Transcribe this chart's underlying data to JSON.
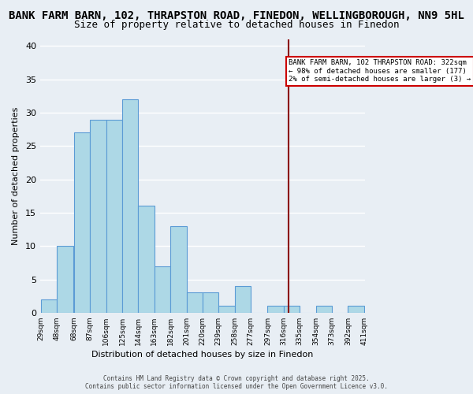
{
  "title1": "BANK FARM BARN, 102, THRAPSTON ROAD, FINEDON, WELLINGBOROUGH, NN9 5HL",
  "title2": "Size of property relative to detached houses in Finedon",
  "xlabel": "Distribution of detached houses by size in Finedon",
  "ylabel": "Number of detached properties",
  "bar_left_edges": [
    29,
    48,
    68,
    87,
    106,
    125,
    144,
    163,
    182,
    201,
    220,
    239,
    258,
    277,
    297,
    316,
    335,
    354,
    373,
    392
  ],
  "bar_heights": [
    2,
    10,
    27,
    29,
    29,
    32,
    16,
    7,
    13,
    3,
    3,
    1,
    4,
    0,
    1,
    1,
    0,
    1,
    0,
    1
  ],
  "bin_width": 19,
  "bar_color": "#add8e6",
  "bar_edge_color": "#5b9bd5",
  "tick_labels": [
    "29sqm",
    "48sqm",
    "68sqm",
    "87sqm",
    "106sqm",
    "125sqm",
    "144sqm",
    "163sqm",
    "182sqm",
    "201sqm",
    "220sqm",
    "239sqm",
    "258sqm",
    "277sqm",
    "297sqm",
    "316sqm",
    "335sqm",
    "354sqm",
    "373sqm",
    "392sqm",
    "411sqm"
  ],
  "vline_x": 322,
  "vline_color": "#8b0000",
  "annotation_text": "BANK FARM BARN, 102 THRAPSTON ROAD: 322sqm\n← 98% of detached houses are smaller (177)\n2% of semi-detached houses are larger (3) →",
  "annotation_box_color": "#ffffff",
  "annotation_box_edge": "#cc0000",
  "ylim": [
    0,
    41
  ],
  "yticks": [
    0,
    5,
    10,
    15,
    20,
    25,
    30,
    35,
    40
  ],
  "bg_color": "#e8eef4",
  "footer": "Contains HM Land Registry data © Crown copyright and database right 2025.\nContains public sector information licensed under the Open Government Licence v3.0.",
  "grid_color": "#ffffff",
  "title_fontsize": 10,
  "subtitle_fontsize": 9
}
